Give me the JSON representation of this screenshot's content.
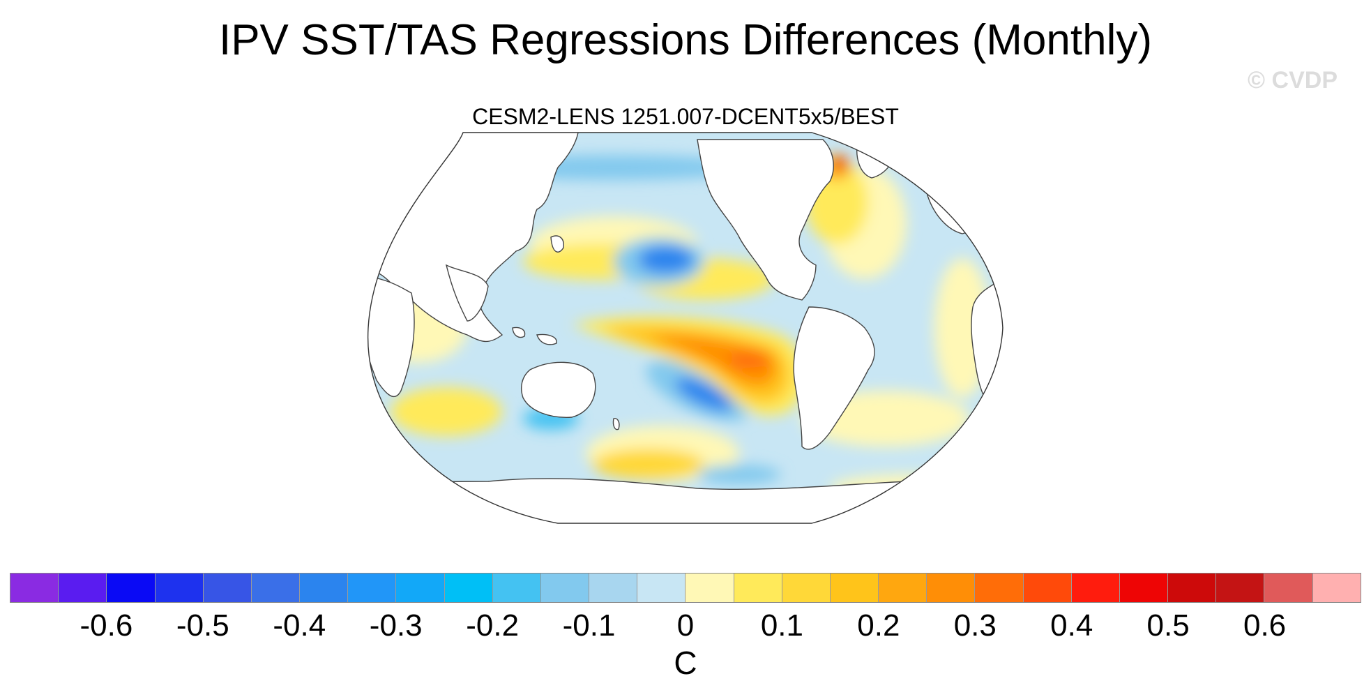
{
  "title": "IPV SST/TAS Regressions Differences (Monthly)",
  "watermark": "© CVDP",
  "subtitle": "CESM2-LENS 1251.007-DCENT5x5/BEST",
  "projection": "Robinson (Pacific-centered global map)",
  "colors": {
    "land": "#ffffff",
    "coastline": "#444444",
    "outline": "#333333"
  },
  "colorbar": {
    "colors": [
      "#8a2be2",
      "#5a1cf0",
      "#0a0af5",
      "#1e32ee",
      "#3755e6",
      "#3a6fe8",
      "#2b84ee",
      "#2196f8",
      "#12a8f8",
      "#00bff6",
      "#44c2f2",
      "#82c9ee",
      "#a8d6ef",
      "#c8e6f4",
      "#fff8b6",
      "#ffea5a",
      "#ffd838",
      "#ffc41a",
      "#ffa70f",
      "#ff8e06",
      "#ff6d08",
      "#ff4a0a",
      "#ff1c0d",
      "#ee0505",
      "#cd0a0a",
      "#c41414",
      "#e05a5a",
      "#ffb0b0"
    ],
    "tick_labels": [
      "-0.6",
      "-0.5",
      "-0.4",
      "-0.3",
      "-0.2",
      "-0.1",
      "0",
      "0.1",
      "0.2",
      "0.3",
      "0.4",
      "0.5",
      "0.6"
    ],
    "units": "C"
  }
}
